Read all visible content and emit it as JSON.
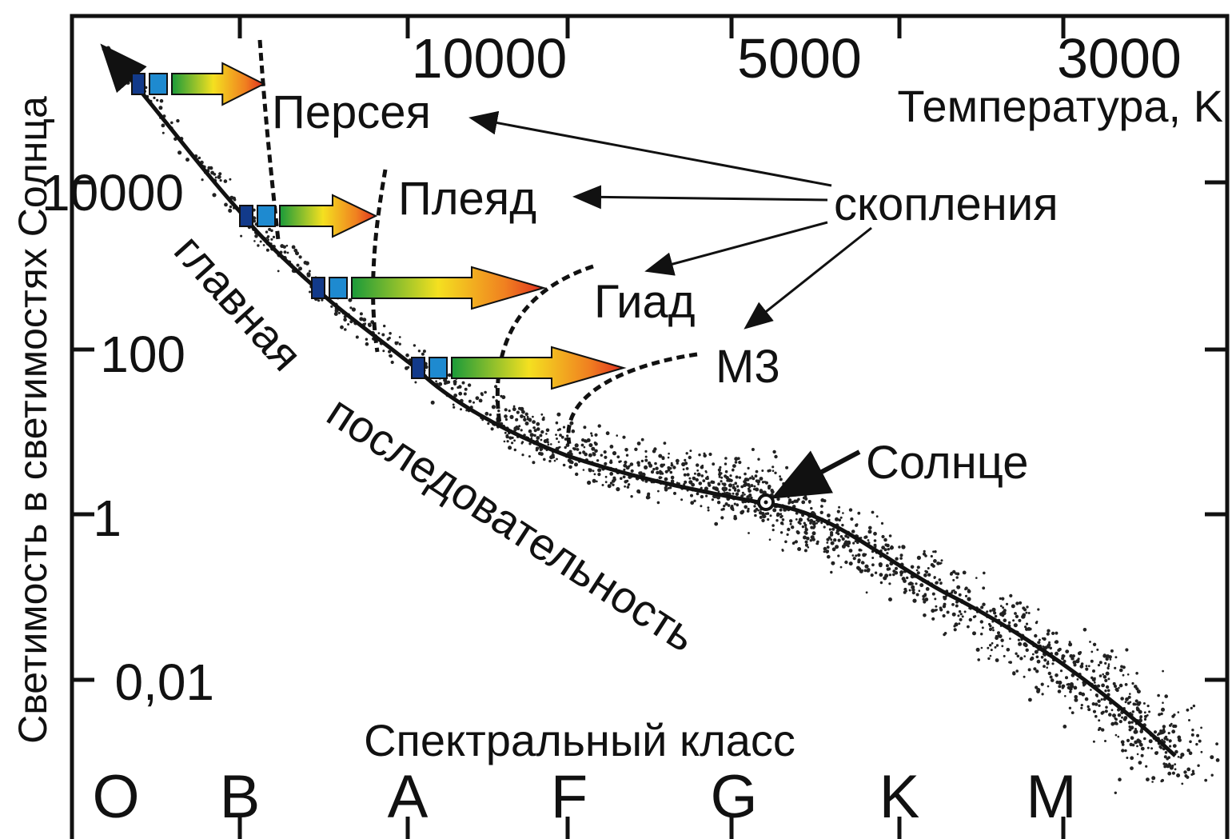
{
  "y_axis_title": "Светимость в светимостях Солнца",
  "luminosity_ticks": [
    "10000",
    "100",
    "1",
    "0,01"
  ],
  "temperature_ticks": [
    "10000",
    "5000",
    "3000"
  ],
  "temperature_label": "Температура, K",
  "spectral_label": "Спектральный класс",
  "spectral_classes": [
    "O",
    "B",
    "A",
    "F",
    "G",
    "K",
    "M"
  ],
  "clusters": [
    "Персея",
    "Плеяд",
    "Гиад",
    "M3"
  ],
  "clusters_label": "скопления",
  "sun_label": "Солнце",
  "main_sequence": [
    "главная",
    "последовательность"
  ]
}
